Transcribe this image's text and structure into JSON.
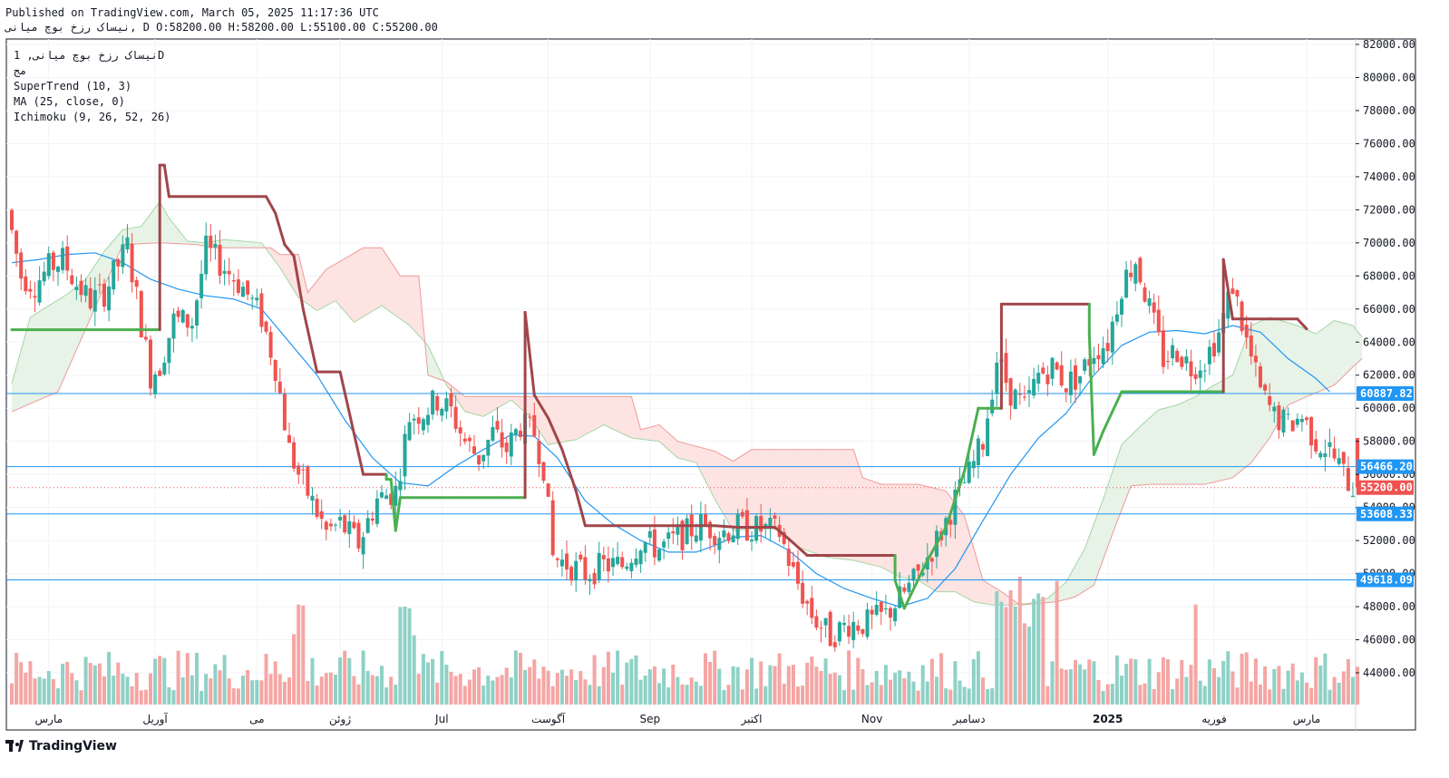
{
  "header": {
    "line1": "Published on TradingView.com, March 05, 2025 11:17:36 UTC",
    "line2": "نیساک رزخ بوچ میانی, D O:58200.00 H:58200.00 L:55100.00 C:55200.00"
  },
  "legend": {
    "symbol": "نیساک رزخ بوچ میانی, 1D",
    "sub": "مج",
    "ind1": "SuperTrend (10, 3)",
    "ind2": "MA (25, close, 0)",
    "ind3": "Ichimoku (9, 26, 52, 26)"
  },
  "footer": {
    "brand": "TradingView"
  },
  "colors": {
    "up": "#26a69a",
    "down": "#ef5350",
    "vol_up": "#8fd1c6",
    "vol_down": "#f4a6a4",
    "supertrend_up": "#4caf50",
    "supertrend_down": "#a0464a",
    "ma": "#2196f3",
    "hline": "#2196f3",
    "cloud_bull": "#e6f3e6",
    "cloud_bear": "#fde3e1",
    "spanA": "#a5d6a7",
    "spanB": "#ef9a9a",
    "price_label": "#ef5350",
    "level_label": "#2196f3"
  },
  "chart_data": {
    "type": "candlestick",
    "ylim": [
      42000,
      82000
    ],
    "y_ticks": [
      "82000.00",
      "80000.00",
      "78000.00",
      "76000.00",
      "74000.00",
      "72000.00",
      "70000.00",
      "68000.00",
      "66000.00",
      "64000.00",
      "62000.00",
      "60000.00",
      "58000.00",
      "56000.00",
      "54000.00",
      "52000.00",
      "50000.00",
      "48000.00",
      "46000.00",
      "44000.00"
    ],
    "x_labels": [
      {
        "label": "مارس",
        "bar": 8
      },
      {
        "label": "آوریل",
        "bar": 31
      },
      {
        "label": "می",
        "bar": 53
      },
      {
        "label": "ژوئن",
        "bar": 71
      },
      {
        "label": "Jul",
        "bar": 93
      },
      {
        "label": "آگوست",
        "bar": 116
      },
      {
        "label": "Sep",
        "bar": 138
      },
      {
        "label": "اکتبر",
        "bar": 160
      },
      {
        "label": "Nov",
        "bar": 186
      },
      {
        "label": "دسامبر",
        "bar": 207
      },
      {
        "label": "2025",
        "bar": 237
      },
      {
        "label": "فوریه",
        "bar": 260
      },
      {
        "label": "مارس",
        "bar": 280
      }
    ],
    "horizontal_levels": [
      {
        "value": 60887.82,
        "label": "60887.82"
      },
      {
        "value": 56466.2,
        "label": "56466.20"
      },
      {
        "value": 53608.33,
        "label": "53608.33"
      },
      {
        "value": 49618.09,
        "label": "49618.09"
      }
    ],
    "last_price": {
      "value": 55200.0,
      "label": "55200.00"
    },
    "ohlc_last": {
      "open": 58200,
      "high": 58200,
      "low": 55100,
      "close": 55200
    },
    "anchors": [
      [
        0,
        72000
      ],
      [
        3,
        68000
      ],
      [
        6,
        67500
      ],
      [
        9,
        68500
      ],
      [
        12,
        69000
      ],
      [
        15,
        67500
      ],
      [
        18,
        66500
      ],
      [
        21,
        67000
      ],
      [
        26,
        69800
      ],
      [
        31,
        62000
      ],
      [
        33,
        62600
      ],
      [
        36,
        65300
      ],
      [
        40,
        65200
      ],
      [
        43,
        69600
      ],
      [
        47,
        68500
      ],
      [
        51,
        67300
      ],
      [
        55,
        65500
      ],
      [
        58,
        62500
      ],
      [
        61,
        57500
      ],
      [
        63,
        56000
      ],
      [
        66,
        54300
      ],
      [
        69,
        52500
      ],
      [
        72,
        53000
      ],
      [
        76,
        51800
      ],
      [
        80,
        54500
      ],
      [
        84,
        55000
      ],
      [
        87,
        59500
      ],
      [
        90,
        59800
      ],
      [
        93,
        60500
      ],
      [
        96,
        59800
      ],
      [
        99,
        58000
      ],
      [
        102,
        57000
      ],
      [
        105,
        58500
      ],
      [
        108,
        57500
      ],
      [
        111,
        59000
      ],
      [
        114,
        58500
      ],
      [
        116,
        56500
      ],
      [
        118,
        51000
      ],
      [
        121,
        50600
      ],
      [
        125,
        50000
      ],
      [
        129,
        50500
      ],
      [
        133,
        50500
      ],
      [
        137,
        52000
      ],
      [
        141,
        51500
      ],
      [
        146,
        52300
      ],
      [
        150,
        53000
      ],
      [
        154,
        52500
      ],
      [
        158,
        52800
      ],
      [
        163,
        52700
      ],
      [
        167,
        52500
      ],
      [
        170,
        50000
      ],
      [
        174,
        47500
      ],
      [
        178,
        46200
      ],
      [
        182,
        47000
      ],
      [
        186,
        47000
      ],
      [
        190,
        47500
      ],
      [
        193,
        48500
      ],
      [
        196,
        49500
      ],
      [
        199,
        51000
      ],
      [
        202,
        52500
      ],
      [
        205,
        54500
      ],
      [
        208,
        56000
      ],
      [
        211,
        58000
      ],
      [
        214,
        63000
      ],
      [
        217,
        61000
      ],
      [
        220,
        60000
      ],
      [
        223,
        62000
      ],
      [
        226,
        62500
      ],
      [
        229,
        61500
      ],
      [
        232,
        62000
      ],
      [
        235,
        63500
      ],
      [
        238,
        64000
      ],
      [
        241,
        67500
      ],
      [
        244,
        69000
      ],
      [
        247,
        66000
      ],
      [
        250,
        63000
      ],
      [
        253,
        63500
      ],
      [
        256,
        62500
      ],
      [
        259,
        63000
      ],
      [
        262,
        64500
      ],
      [
        265,
        67500
      ],
      [
        268,
        64000
      ],
      [
        271,
        61000
      ],
      [
        274,
        59500
      ],
      [
        277,
        59000
      ],
      [
        280,
        59500
      ],
      [
        283,
        58000
      ],
      [
        286,
        57500
      ],
      [
        289,
        56000
      ],
      [
        291,
        55200
      ]
    ],
    "supertrend": [
      [
        0,
        64750,
        "up"
      ],
      [
        32,
        64750,
        "up"
      ],
      [
        32,
        74700,
        "down"
      ],
      [
        33,
        74700,
        "down"
      ],
      [
        34,
        72800,
        "down"
      ],
      [
        55,
        72800,
        "down"
      ],
      [
        57,
        71800,
        "down"
      ],
      [
        59,
        69900,
        "down"
      ],
      [
        61,
        69200,
        "down"
      ],
      [
        63,
        66000,
        "down"
      ],
      [
        66,
        62200,
        "down"
      ],
      [
        71,
        62200,
        "down"
      ],
      [
        76,
        56000,
        "down"
      ],
      [
        81,
        56000,
        "down"
      ],
      [
        81,
        55700,
        "up"
      ],
      [
        82,
        55700,
        "up"
      ],
      [
        83,
        52600,
        "up"
      ],
      [
        84,
        54600,
        "up"
      ],
      [
        107,
        54600,
        "up"
      ],
      [
        111,
        54600,
        "up"
      ],
      [
        111,
        65800,
        "down"
      ],
      [
        113,
        60800,
        "down"
      ],
      [
        116,
        59400,
        "down"
      ],
      [
        119,
        57500,
        "down"
      ],
      [
        122,
        55000,
        "down"
      ],
      [
        124,
        52900,
        "down"
      ],
      [
        152,
        52900,
        "down"
      ],
      [
        157,
        52800,
        "down"
      ],
      [
        165,
        52800,
        "down"
      ],
      [
        168,
        52100,
        "down"
      ],
      [
        172,
        51100,
        "down"
      ],
      [
        191,
        51100,
        "down"
      ],
      [
        191,
        49600,
        "up"
      ],
      [
        193,
        47900,
        "up"
      ],
      [
        198,
        50800,
        "up"
      ],
      [
        202,
        52800,
        "up"
      ],
      [
        206,
        56200,
        "up"
      ],
      [
        209,
        60000,
        "up"
      ],
      [
        214,
        60000,
        "up"
      ],
      [
        214,
        66300,
        "down"
      ],
      [
        233,
        66300,
        "down"
      ],
      [
        233,
        64500,
        "up"
      ],
      [
        234,
        57200,
        "up"
      ],
      [
        236,
        58600,
        "up"
      ],
      [
        240,
        61000,
        "up"
      ],
      [
        262,
        61000,
        "up"
      ],
      [
        262,
        69000,
        "down"
      ],
      [
        264,
        65400,
        "down"
      ],
      [
        278,
        65400,
        "down"
      ],
      [
        280,
        64800,
        "down"
      ]
    ],
    "ma25": [
      [
        0,
        68800
      ],
      [
        6,
        69000
      ],
      [
        12,
        69300
      ],
      [
        18,
        69400
      ],
      [
        24,
        68800
      ],
      [
        30,
        67800
      ],
      [
        36,
        67200
      ],
      [
        42,
        66800
      ],
      [
        48,
        66600
      ],
      [
        54,
        66000
      ],
      [
        60,
        64000
      ],
      [
        66,
        62000
      ],
      [
        72,
        59300
      ],
      [
        78,
        57000
      ],
      [
        84,
        55500
      ],
      [
        90,
        55300
      ],
      [
        96,
        56500
      ],
      [
        102,
        57500
      ],
      [
        108,
        58400
      ],
      [
        113,
        58300
      ],
      [
        118,
        57000
      ],
      [
        124,
        54400
      ],
      [
        130,
        53000
      ],
      [
        136,
        52000
      ],
      [
        142,
        51300
      ],
      [
        148,
        51300
      ],
      [
        152,
        51700
      ],
      [
        156,
        52200
      ],
      [
        162,
        52300
      ],
      [
        168,
        51400
      ],
      [
        174,
        50000
      ],
      [
        180,
        49100
      ],
      [
        186,
        48500
      ],
      [
        192,
        48000
      ],
      [
        198,
        48500
      ],
      [
        204,
        50300
      ],
      [
        210,
        53200
      ],
      [
        216,
        56000
      ],
      [
        222,
        58200
      ],
      [
        228,
        59700
      ],
      [
        234,
        62000
      ],
      [
        240,
        63800
      ],
      [
        246,
        64600
      ],
      [
        252,
        64700
      ],
      [
        258,
        64500
      ],
      [
        264,
        65000
      ],
      [
        270,
        64600
      ],
      [
        276,
        63000
      ],
      [
        282,
        61800
      ],
      [
        285,
        61000
      ]
    ],
    "span_a": [
      [
        0,
        61500
      ],
      [
        4,
        65500
      ],
      [
        8,
        66200
      ],
      [
        12,
        66900
      ],
      [
        16,
        67800
      ],
      [
        20,
        69500
      ],
      [
        24,
        70800
      ],
      [
        28,
        71000
      ],
      [
        32,
        72500
      ],
      [
        34,
        71500
      ],
      [
        38,
        70100
      ],
      [
        42,
        70000
      ],
      [
        46,
        70200
      ],
      [
        50,
        70100
      ],
      [
        54,
        70000
      ],
      [
        58,
        68500
      ],
      [
        62,
        66700
      ],
      [
        66,
        65900
      ],
      [
        70,
        66500
      ],
      [
        74,
        65200
      ],
      [
        80,
        66200
      ],
      [
        86,
        65000
      ],
      [
        90,
        63800
      ],
      [
        94,
        61400
      ],
      [
        98,
        59800
      ],
      [
        102,
        59500
      ],
      [
        108,
        60500
      ],
      [
        112,
        59500
      ],
      [
        116,
        57800
      ],
      [
        122,
        58100
      ],
      [
        128,
        59000
      ],
      [
        134,
        58200
      ],
      [
        140,
        58000
      ],
      [
        144,
        57000
      ],
      [
        148,
        56700
      ],
      [
        152,
        54500
      ],
      [
        156,
        52600
      ],
      [
        160,
        52700
      ],
      [
        166,
        52700
      ],
      [
        170,
        51600
      ],
      [
        176,
        51000
      ],
      [
        182,
        50800
      ],
      [
        188,
        50400
      ],
      [
        192,
        49800
      ],
      [
        196,
        49600
      ],
      [
        200,
        48900
      ],
      [
        204,
        48900
      ],
      [
        208,
        48300
      ],
      [
        212,
        48100
      ],
      [
        216,
        48100
      ],
      [
        220,
        48200
      ],
      [
        224,
        48500
      ],
      [
        228,
        49500
      ],
      [
        232,
        51500
      ],
      [
        236,
        54500
      ],
      [
        240,
        57800
      ],
      [
        244,
        58900
      ],
      [
        248,
        59900
      ],
      [
        252,
        60200
      ],
      [
        256,
        60700
      ],
      [
        260,
        61400
      ],
      [
        264,
        62000
      ],
      [
        268,
        65000
      ],
      [
        272,
        65500
      ],
      [
        278,
        65000
      ],
      [
        282,
        64500
      ],
      [
        286,
        65300
      ],
      [
        290,
        65000
      ],
      [
        292,
        64300
      ]
    ],
    "span_b": [
      [
        0,
        59800
      ],
      [
        10,
        61000
      ],
      [
        24,
        69900
      ],
      [
        32,
        70000
      ],
      [
        40,
        69900
      ],
      [
        44,
        69700
      ],
      [
        50,
        69700
      ],
      [
        56,
        69700
      ],
      [
        58,
        69300
      ],
      [
        62,
        69300
      ],
      [
        64,
        67000
      ],
      [
        68,
        68400
      ],
      [
        76,
        69700
      ],
      [
        80,
        69700
      ],
      [
        84,
        68000
      ],
      [
        88,
        68000
      ],
      [
        90,
        62000
      ],
      [
        94,
        61600
      ],
      [
        98,
        60700
      ],
      [
        102,
        60700
      ],
      [
        104,
        60700
      ],
      [
        108,
        60700
      ],
      [
        112,
        60700
      ],
      [
        120,
        60700
      ],
      [
        124,
        60700
      ],
      [
        128,
        60700
      ],
      [
        134,
        60700
      ],
      [
        136,
        58700
      ],
      [
        140,
        59000
      ],
      [
        144,
        58000
      ],
      [
        148,
        57700
      ],
      [
        152,
        57400
      ],
      [
        156,
        56800
      ],
      [
        160,
        57500
      ],
      [
        164,
        57500
      ],
      [
        170,
        57500
      ],
      [
        176,
        57500
      ],
      [
        182,
        57500
      ],
      [
        184,
        55800
      ],
      [
        188,
        55400
      ],
      [
        196,
        55400
      ],
      [
        202,
        55000
      ],
      [
        206,
        53500
      ],
      [
        210,
        49600
      ],
      [
        214,
        48900
      ],
      [
        218,
        48100
      ],
      [
        222,
        48200
      ],
      [
        226,
        48300
      ],
      [
        230,
        48600
      ],
      [
        234,
        49300
      ],
      [
        238,
        52400
      ],
      [
        242,
        55300
      ],
      [
        246,
        55400
      ],
      [
        252,
        55400
      ],
      [
        258,
        55400
      ],
      [
        264,
        55800
      ],
      [
        268,
        56700
      ],
      [
        272,
        58200
      ],
      [
        276,
        60200
      ],
      [
        280,
        60700
      ],
      [
        286,
        61400
      ],
      [
        290,
        62500
      ],
      [
        292,
        63000
      ]
    ]
  }
}
